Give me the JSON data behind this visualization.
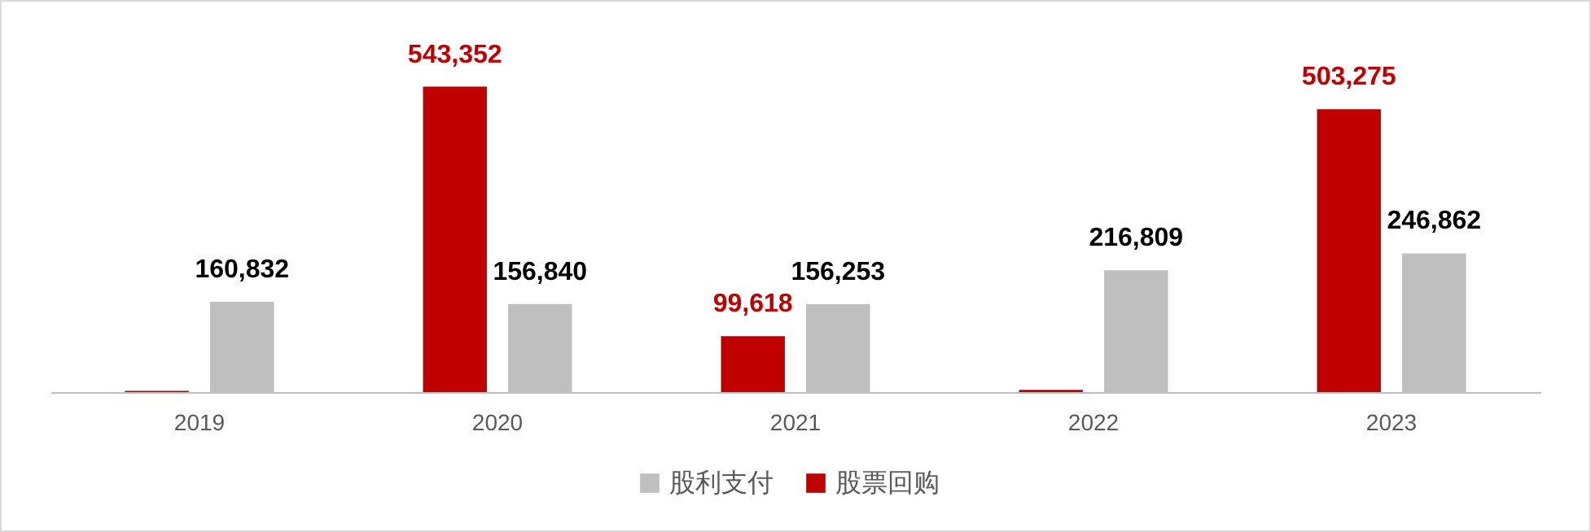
{
  "chart_data": {
    "type": "bar",
    "categories": [
      "2019",
      "2020",
      "2021",
      "2022",
      "2023"
    ],
    "series": [
      {
        "name": "股利支付",
        "color": "#bfbfbf",
        "values": [
          160832,
          156840,
          156253,
          216809,
          246862
        ],
        "value_labels": [
          "160,832",
          "156,840",
          "156,253",
          "216,809",
          "246,862"
        ]
      },
      {
        "name": "股票回购",
        "color": "#c00000",
        "values": [
          2000,
          543352,
          99618,
          4000,
          503275
        ],
        "value_labels": [
          null,
          "543,352",
          "99,618",
          null,
          "503,275"
        ]
      }
    ],
    "legend": "bottom"
  }
}
